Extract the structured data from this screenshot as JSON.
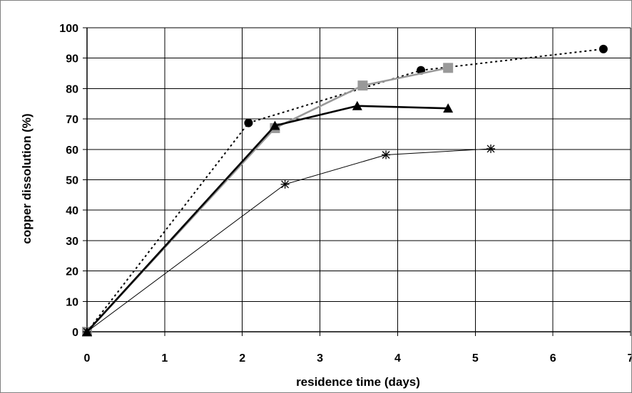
{
  "chart_data": {
    "type": "line",
    "title": "",
    "xlabel": "residence time (days)",
    "ylabel": "copper dissolution (%)",
    "xlim": [
      0,
      7
    ],
    "ylim": [
      0,
      100
    ],
    "xticks": [
      "0",
      "1",
      "2",
      "3",
      "4",
      "5",
      "6",
      "7"
    ],
    "yticks": [
      "0",
      "10",
      "20",
      "30",
      "40",
      "50",
      "60",
      "70",
      "80",
      "90",
      "100"
    ],
    "grid": true,
    "legend": "none",
    "series": [
      {
        "style": "dotted",
        "marker": "circle",
        "color": "#000000",
        "x": [
          0,
          2.08,
          4.3,
          6.65
        ],
        "y": [
          0,
          68.7,
          86,
          93
        ]
      },
      {
        "style": "solid-thick",
        "marker": "square",
        "color": "#999999",
        "x": [
          0,
          2.42,
          3.55,
          4.65
        ],
        "y": [
          0,
          67,
          81,
          86.8
        ]
      },
      {
        "style": "solid-thick",
        "marker": "triangle",
        "color": "#000000",
        "x": [
          0,
          2.42,
          3.48,
          4.65
        ],
        "y": [
          0,
          67.8,
          74.3,
          73.5
        ]
      },
      {
        "style": "solid-thin",
        "marker": "asterisk",
        "color": "#000000",
        "x": [
          0,
          2.55,
          3.85,
          5.2
        ],
        "y": [
          0,
          48.5,
          58.2,
          60.2
        ]
      }
    ]
  }
}
